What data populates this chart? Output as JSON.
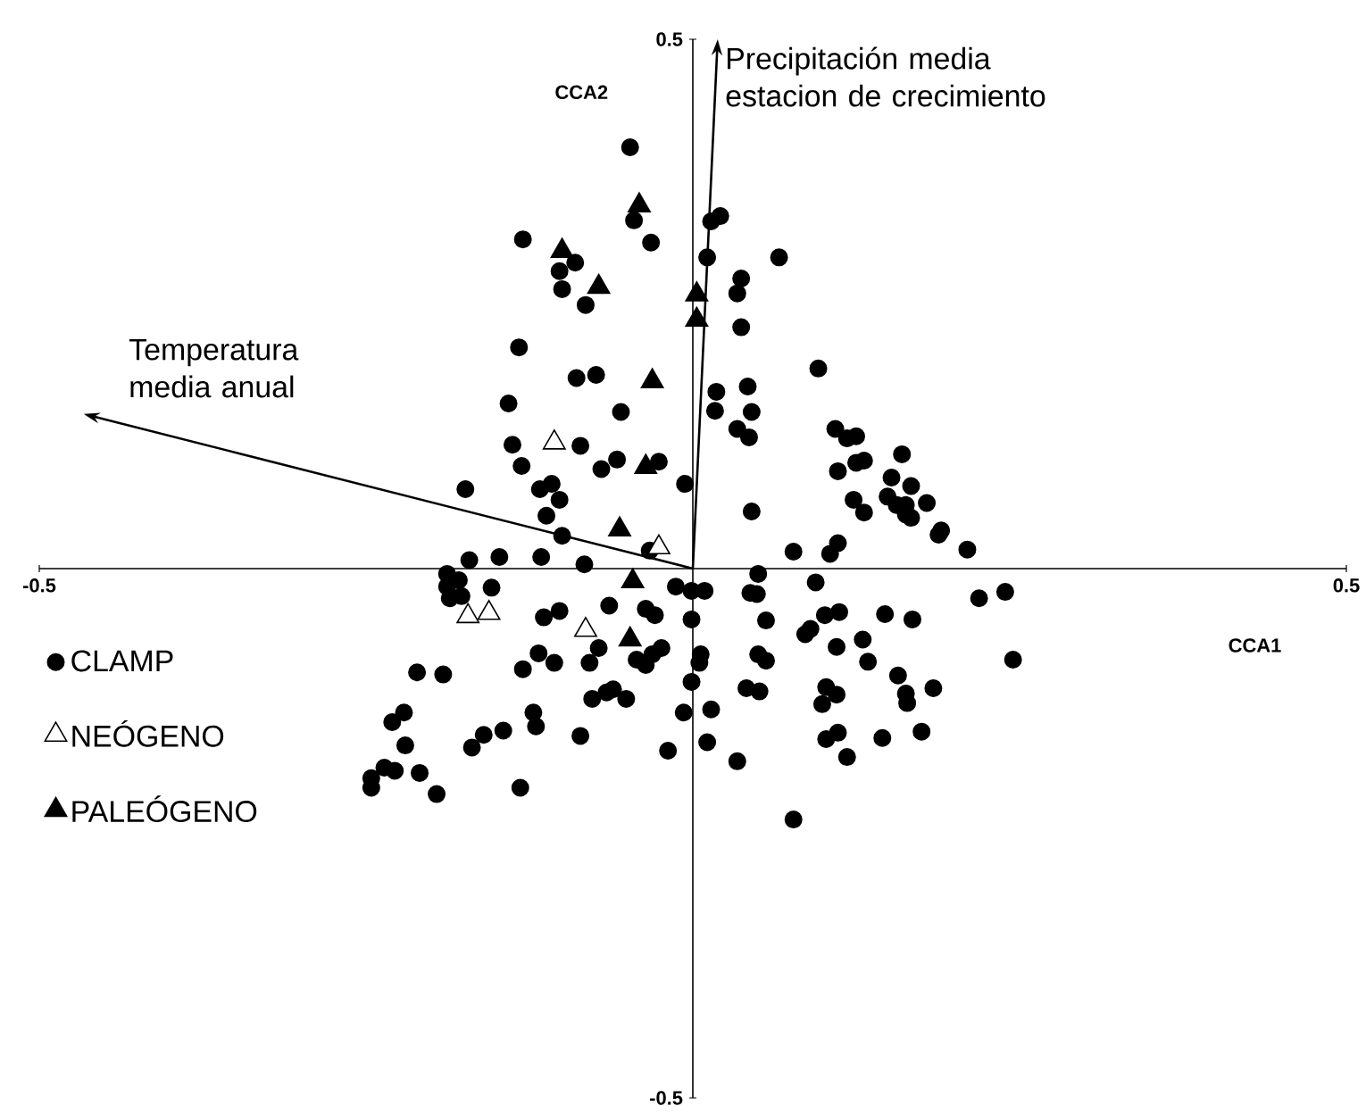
{
  "chart_data": {
    "type": "scatter",
    "xlabel": "CCA1",
    "ylabel": "CCA2",
    "xlim": [
      -0.5,
      0.5
    ],
    "ylim": [
      -0.5,
      0.5
    ],
    "xticks": [
      -0.5,
      0.5
    ],
    "yticks": [
      -0.5,
      0.5
    ],
    "legend": "left",
    "series": [
      {
        "name": "CLAMP",
        "color": "#000000",
        "marker": "circle",
        "x": [
          -0.048,
          -0.045,
          -0.032,
          -0.13,
          -0.09,
          -0.102,
          -0.1,
          -0.082,
          -0.133,
          -0.089,
          -0.074,
          -0.141,
          -0.055,
          -0.138,
          -0.086,
          -0.131,
          -0.07,
          -0.058,
          -0.026,
          -0.006,
          -0.174,
          -0.117,
          -0.108,
          -0.102,
          -0.112,
          -0.1,
          -0.033,
          -0.171,
          -0.148,
          -0.116,
          -0.083,
          0.014,
          0.021,
          0.011,
          0.066,
          0.037,
          0.034,
          0.037,
          0.096,
          0.018,
          0.017,
          0.042,
          0.045,
          0.034,
          0.043,
          0.109,
          0.118,
          0.125,
          0.16,
          0.111,
          0.125,
          0.131,
          0.152,
          0.167,
          0.149,
          0.156,
          0.163,
          0.163,
          0.167,
          0.179,
          0.123,
          0.131,
          0.045,
          0.188,
          0.19,
          0.21,
          0.077,
          0.105,
          0.111,
          -0.188,
          -0.179,
          -0.188,
          -0.186,
          -0.177,
          -0.154,
          -0.114,
          -0.102,
          -0.064,
          -0.036,
          -0.029,
          -0.013,
          -0.001,
          -0.001,
          -0.072,
          -0.118,
          -0.106,
          -0.13,
          -0.079,
          -0.043,
          -0.036,
          -0.024,
          -0.031,
          -0.211,
          -0.191,
          -0.077,
          -0.066,
          -0.061,
          -0.051,
          -0.001,
          -0.221,
          -0.23,
          -0.122,
          -0.12,
          -0.007,
          -0.22,
          -0.16,
          -0.169,
          -0.145,
          -0.086,
          -0.019,
          -0.236,
          -0.228,
          -0.246,
          -0.246,
          -0.209,
          -0.196,
          -0.132,
          0.05,
          0.094,
          0.009,
          0.044,
          0.049,
          0.056,
          0.101,
          0.112,
          0.147,
          0.168,
          0.219,
          0.239,
          0.086,
          0.09,
          0.11,
          0.13,
          0.134,
          0.006,
          0.005,
          0.05,
          0.056,
          0.245,
          0.157,
          0.041,
          0.051,
          0.102,
          0.11,
          0.099,
          0.163,
          0.164,
          0.184,
          0.014,
          0.011,
          0.034,
          0.102,
          0.111,
          0.145,
          0.175,
          0.118,
          0.077
        ],
        "values": [
          0.398,
          0.329,
          0.308,
          0.311,
          0.289,
          0.281,
          0.264,
          0.249,
          0.209,
          0.18,
          0.183,
          0.156,
          0.148,
          0.117,
          0.116,
          0.097,
          0.094,
          0.103,
          0.101,
          0.08,
          0.075,
          0.075,
          0.08,
          0.065,
          0.05,
          0.031,
          0.017,
          0.008,
          0.011,
          0.011,
          0.004,
          0.328,
          0.333,
          0.294,
          0.294,
          0.274,
          0.26,
          0.228,
          0.189,
          0.167,
          0.149,
          0.172,
          0.148,
          0.132,
          0.124,
          0.132,
          0.123,
          0.125,
          0.108,
          0.092,
          0.1,
          0.102,
          0.086,
          0.078,
          0.068,
          0.06,
          0.06,
          0.051,
          0.048,
          0.062,
          0.065,
          0.053,
          0.054,
          0.032,
          0.036,
          0.018,
          0.016,
          0.014,
          0.024,
          -0.005,
          -0.011,
          -0.017,
          -0.028,
          -0.026,
          -0.018,
          -0.046,
          -0.04,
          -0.035,
          -0.038,
          -0.044,
          -0.017,
          -0.021,
          -0.048,
          -0.075,
          -0.08,
          -0.089,
          -0.095,
          -0.089,
          -0.086,
          -0.091,
          -0.075,
          -0.081,
          -0.098,
          -0.1,
          -0.123,
          -0.117,
          -0.114,
          -0.123,
          -0.107,
          -0.136,
          -0.145,
          -0.136,
          -0.149,
          -0.136,
          -0.167,
          -0.157,
          -0.169,
          -0.153,
          -0.158,
          -0.172,
          -0.188,
          -0.191,
          -0.198,
          -0.207,
          -0.193,
          -0.213,
          -0.207,
          -0.005,
          -0.013,
          -0.021,
          -0.023,
          -0.024,
          -0.049,
          -0.044,
          -0.041,
          -0.043,
          -0.048,
          -0.028,
          -0.022,
          -0.062,
          -0.057,
          -0.074,
          -0.067,
          -0.088,
          -0.081,
          -0.089,
          -0.081,
          -0.087,
          -0.086,
          -0.101,
          -0.113,
          -0.116,
          -0.112,
          -0.119,
          -0.128,
          -0.118,
          -0.127,
          -0.113,
          -0.133,
          -0.164,
          -0.182,
          -0.161,
          -0.155,
          -0.16,
          -0.154,
          -0.178,
          -0.237
        ]
      },
      {
        "name": "NEÓGENO",
        "color": "#ffffff",
        "marker": "triangle",
        "x": [
          -0.106,
          -0.026,
          -0.172,
          -0.156,
          -0.082
        ],
        "values": [
          0.119,
          0.02,
          -0.045,
          -0.042,
          -0.058
        ]
      },
      {
        "name": "PALEÓGENO",
        "color": "#000000",
        "marker": "triangle",
        "x": [
          -0.041,
          -0.1,
          -0.072,
          -0.031,
          -0.036,
          -0.056,
          0.003,
          0.003,
          -0.046,
          -0.048
        ],
        "values": [
          0.343,
          0.3,
          0.266,
          0.177,
          0.096,
          0.037,
          0.259,
          0.235,
          -0.012,
          -0.067
        ]
      }
    ],
    "annotations": [
      "Precipitación media estacion de crecimiento",
      "Temperatura media anual"
    ]
  }
}
